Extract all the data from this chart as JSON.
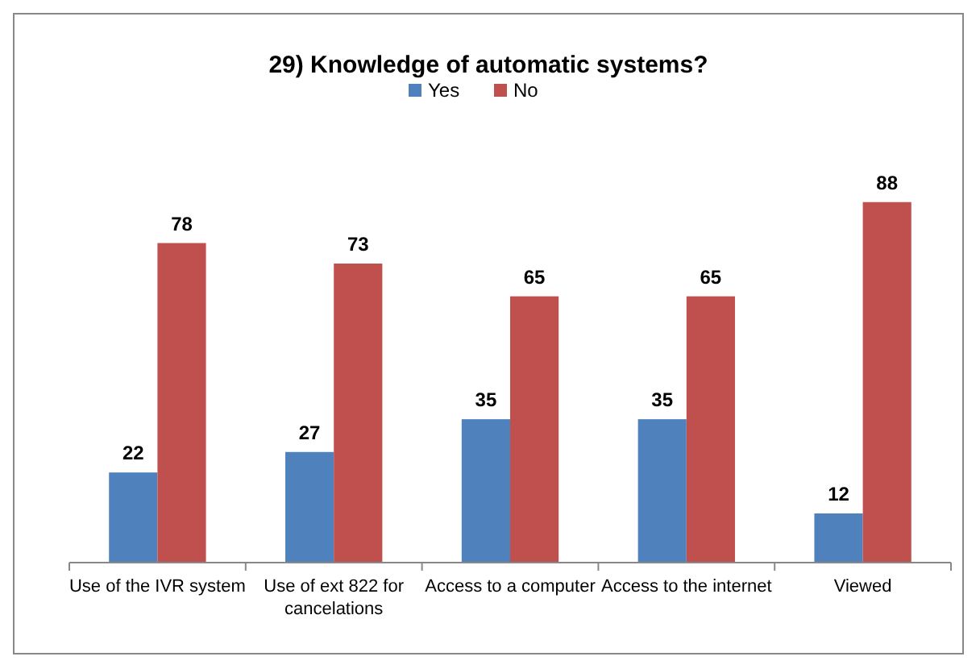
{
  "chart_data": {
    "type": "bar",
    "title": "29) Knowledge of automatic systems?",
    "categories": [
      "Use of the IVR system",
      "Use of ext 822 for cancelations",
      "Access to a computer",
      "Access to the internet",
      "Viewed"
    ],
    "series": [
      {
        "name": "Yes",
        "color": "#4f81bd",
        "values": [
          22,
          27,
          35,
          35,
          12
        ]
      },
      {
        "name": "No",
        "color": "#c0504d",
        "values": [
          78,
          73,
          65,
          65,
          88
        ]
      }
    ],
    "data_labels": true,
    "legend": "top",
    "grid": false
  }
}
